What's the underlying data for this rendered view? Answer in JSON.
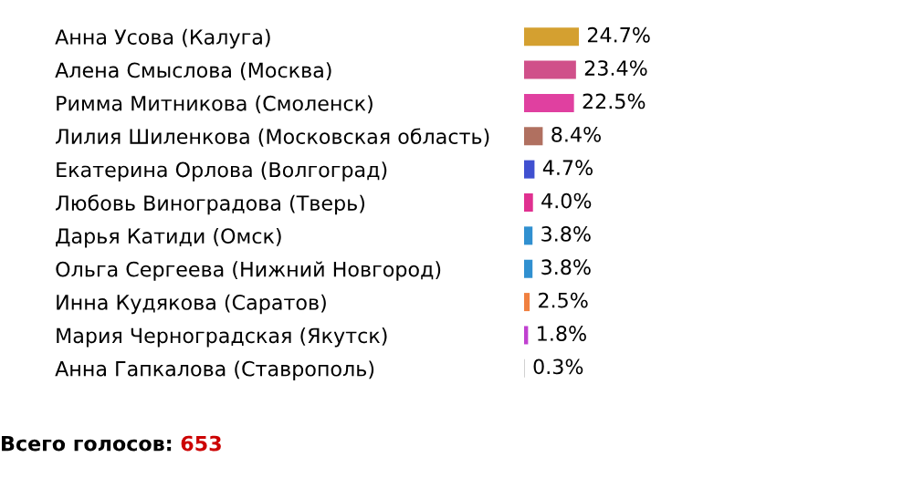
{
  "chart_data": {
    "type": "bar",
    "orientation": "horizontal",
    "value_labels": [
      "24.7%",
      "23.4%",
      "22.5%",
      "8.4%",
      "4.7%",
      "4.0%",
      "3.8%",
      "3.8%",
      "2.5%",
      "1.8%",
      "0.3%"
    ],
    "categories": [
      "Анна Усова (Калуга)",
      "Алена Смыслова (Москва)",
      "Римма Митникова (Смоленск)",
      "Лилия Шиленкова (Московская область)",
      "Екатерина Орлова (Волгоград)",
      "Любовь Виноградова (Тверь)",
      "Дарья Катиди (Омск)",
      "Ольга Сергеева (Нижний Новгород)",
      "Инна Кудякова (Саратов)",
      "Мария Черноградская (Якутск)",
      "Анна Гапкалова (Ставрополь)"
    ],
    "values": [
      24.7,
      23.4,
      22.5,
      8.4,
      4.7,
      4.0,
      3.8,
      3.8,
      2.5,
      1.8,
      0.3
    ],
    "colors": [
      "#d4a030",
      "#d0508a",
      "#e040a0",
      "#b07060",
      "#4050d0",
      "#e03090",
      "#3090d0",
      "#3090d0",
      "#f08040",
      "#c040d0",
      "#c0c0c0"
    ],
    "annotations": [
      "Всего голосов:",
      "653"
    ]
  }
}
